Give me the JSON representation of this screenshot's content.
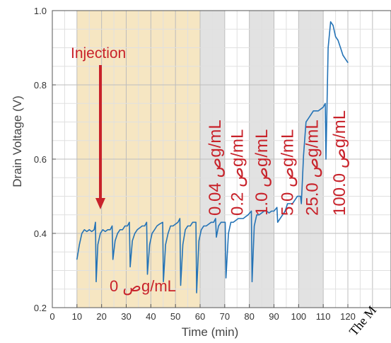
{
  "chart_data": {
    "type": "line",
    "xlabel": "Time (min)",
    "ylabel": "Drain Voltage (V)",
    "xlim": [
      0,
      120
    ],
    "ylim": [
      0.2,
      1.0
    ],
    "x_ticks": [
      "0",
      "10",
      "20",
      "30",
      "40",
      "50",
      "60",
      "70",
      "80",
      "90",
      "100",
      "110",
      "120"
    ],
    "y_ticks": [
      "0.2",
      "0.4",
      "0.6",
      "0.8",
      "1.0"
    ],
    "grid": true,
    "colors": {
      "line": "#2473b6",
      "annotation": "#c8222a",
      "baseline_band": "#f6e6c2",
      "conc_band": "#e2e2e2"
    },
    "bands": [
      {
        "x": [
          10,
          60
        ],
        "kind": "baseline"
      },
      {
        "x": [
          60,
          70
        ],
        "kind": "concentration"
      },
      {
        "x": [
          80,
          90
        ],
        "kind": "concentration"
      },
      {
        "x": [
          100,
          110
        ],
        "kind": "concentration"
      }
    ],
    "injection_times": [
      17.5,
      24.5,
      31.5,
      38.5,
      45,
      52,
      58.5,
      66.5,
      70.5,
      81,
      91.5,
      101,
      111
    ],
    "series": [
      {
        "x": [
          10,
          11,
          12,
          13,
          14,
          15,
          16,
          17,
          17.5,
          17.8,
          18.5,
          19.5,
          20.5,
          21.5,
          22.5,
          23.5,
          24.3,
          24.6,
          25.5,
          26.5,
          27.5,
          28.5,
          29.5,
          30.5,
          31.3,
          31.6,
          32.5,
          33.5,
          34.5,
          35.5,
          36.5,
          37.5,
          38.3,
          38.6,
          39.5,
          40.5,
          41.5,
          42.5,
          43.5,
          44.8,
          45.1,
          46,
          47,
          48,
          49,
          50,
          51,
          51.8,
          52.1,
          53,
          54,
          55,
          56,
          57,
          58.3,
          58.6,
          59.5,
          60.5,
          61.5,
          62.5,
          63.5,
          64.5,
          65.5,
          66.3,
          66.6,
          67.5,
          68.5,
          69.5,
          70.2,
          70.5,
          71.5,
          72.5,
          73.5,
          74.5,
          75.5,
          76.5,
          77.5,
          78.5,
          79.5,
          80.8,
          81.1,
          82,
          83,
          84,
          85,
          86,
          87,
          88,
          89,
          90,
          91.2,
          91.5,
          92.5,
          93.5,
          94.5,
          95.5,
          96.5,
          97.5,
          98.5,
          99.5,
          100.8,
          101.1,
          102,
          103,
          104,
          105,
          106,
          107,
          108,
          109,
          110,
          110.8,
          111.1,
          112,
          113,
          114,
          115,
          116,
          117,
          118,
          119,
          120
        ],
        "y": [
          0.33,
          0.37,
          0.4,
          0.41,
          0.405,
          0.41,
          0.405,
          0.41,
          0.43,
          0.27,
          0.37,
          0.4,
          0.41,
          0.405,
          0.41,
          0.41,
          0.42,
          0.33,
          0.38,
          0.4,
          0.41,
          0.41,
          0.42,
          0.42,
          0.43,
          0.31,
          0.38,
          0.4,
          0.41,
          0.415,
          0.42,
          0.42,
          0.43,
          0.29,
          0.37,
          0.4,
          0.41,
          0.42,
          0.425,
          0.43,
          0.27,
          0.37,
          0.4,
          0.42,
          0.42,
          0.425,
          0.43,
          0.44,
          0.26,
          0.37,
          0.41,
          0.42,
          0.42,
          0.43,
          0.43,
          0.24,
          0.38,
          0.41,
          0.42,
          0.42,
          0.425,
          0.43,
          0.43,
          0.44,
          0.39,
          0.42,
          0.43,
          0.43,
          0.43,
          0.28,
          0.4,
          0.43,
          0.43,
          0.435,
          0.44,
          0.44,
          0.44,
          0.445,
          0.45,
          0.46,
          0.27,
          0.42,
          0.45,
          0.45,
          0.455,
          0.46,
          0.46,
          0.455,
          0.46,
          0.46,
          0.47,
          0.43,
          0.44,
          0.45,
          0.46,
          0.48,
          0.48,
          0.48,
          0.49,
          0.5,
          0.5,
          0.48,
          0.61,
          0.7,
          0.71,
          0.72,
          0.73,
          0.73,
          0.73,
          0.735,
          0.74,
          0.75,
          0.6,
          0.9,
          0.97,
          0.96,
          0.93,
          0.92,
          0.9,
          0.88,
          0.87,
          0.86
        ]
      }
    ],
    "annotations": {
      "injection": "Injection",
      "zero_conc": "0 صg/mL",
      "concentrations": [
        {
          "label": "0.04 صg/mL",
          "x": 66
        },
        {
          "label": "0.2 صg/mL",
          "x": 75
        },
        {
          "label": "1.0 صg/mL",
          "x": 85
        },
        {
          "label": "5.0 صg/mL",
          "x": 95.5
        },
        {
          "label": "25.0 صg/mL",
          "x": 105.5
        },
        {
          "label": "100.0 صg/mL",
          "x": 116.5
        }
      ]
    },
    "watermark": "The M"
  }
}
